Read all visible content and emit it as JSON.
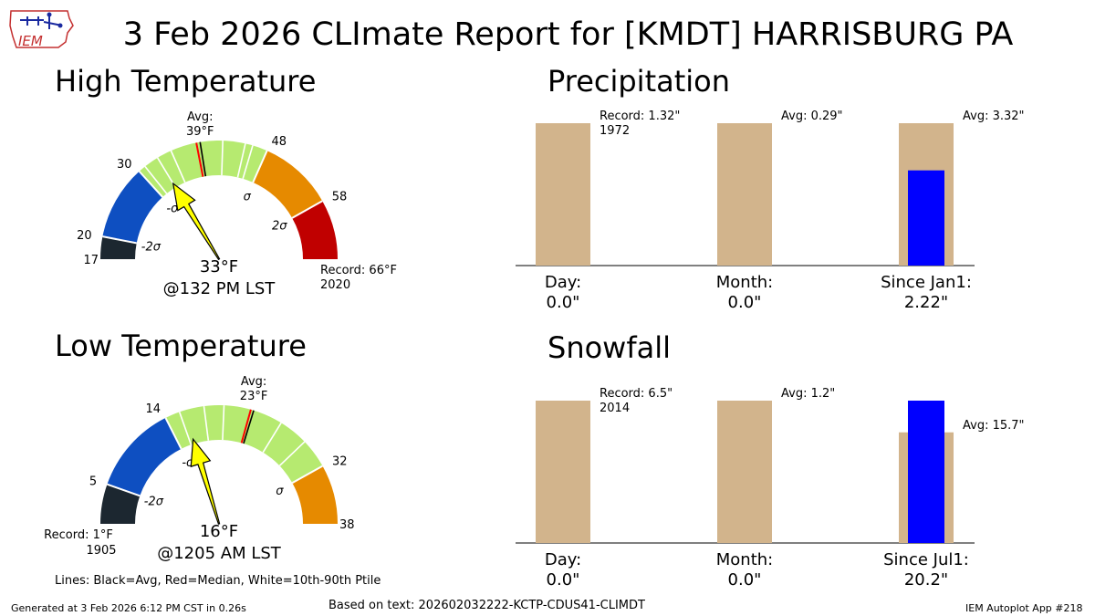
{
  "title": "3 Feb 2026 CLImate Report for [KMDT] HARRISBURG PA",
  "logo_text": "IEM",
  "panels": {
    "high_title": "High Temperature",
    "low_title": "Low Temperature",
    "precip_title": "Precipitation",
    "snow_title": "Snowfall"
  },
  "legend_lines": "Lines: Black=Avg, Red=Median, White=10th-90th Ptile",
  "footer": {
    "generated": "Generated at 3 Feb 2026 6:12 PM CST in 0.26s",
    "based_on": "Based on text: 202602032222-KCTP-CDUS41-CLIMDT",
    "app": "IEM Autoplot App #218"
  },
  "colors": {
    "gauge_black": "#1c2730",
    "gauge_blue": "#0e4fc1",
    "gauge_green": "#b6ea70",
    "gauge_orange": "#e68a00",
    "gauge_red": "#c00000",
    "bar_avg": "#d2b48c",
    "bar_obs": "#0000ff",
    "pointer": "#ffff00",
    "median_line": "#ff0000",
    "avg_line": "#000000",
    "ptile_line": "#ffffff"
  },
  "chart_data": [
    {
      "type": "gauge",
      "name": "high",
      "min": 17,
      "max": 66,
      "bands": [
        {
          "from": 17,
          "to": 20,
          "color": "gauge_black"
        },
        {
          "from": 20,
          "to": 30,
          "color": "gauge_blue"
        },
        {
          "from": 30,
          "to": 48,
          "color": "gauge_green"
        },
        {
          "from": 48,
          "to": 58,
          "color": "gauge_orange"
        },
        {
          "from": 58,
          "to": 66,
          "color": "gauge_red"
        }
      ],
      "tick_labels": [
        {
          "value": 17,
          "label": "17"
        },
        {
          "value": 20,
          "label": "20"
        },
        {
          "value": 30,
          "label": "30"
        },
        {
          "value": 48,
          "label": "48"
        },
        {
          "value": 58,
          "label": "58"
        }
      ],
      "sigma_labels": [
        {
          "value": 20,
          "label": "-2σ"
        },
        {
          "value": 30,
          "label": "-σ"
        },
        {
          "value": 48,
          "label": "σ"
        },
        {
          "value": 58,
          "label": "2σ"
        }
      ],
      "avg": 39,
      "median": 38.5,
      "ptile_lines": [
        31,
        33,
        35,
        42,
        45,
        46
      ],
      "avg_label": "Avg:\n39°F",
      "observed": 33,
      "observed_label": "33°F",
      "observed_time": "@132 PM LST",
      "record_label": "Record: 66°F\n2020",
      "record_side": "right"
    },
    {
      "type": "gauge",
      "name": "low",
      "min": 1,
      "max": 38,
      "bands": [
        {
          "from": 1,
          "to": 5,
          "color": "gauge_black"
        },
        {
          "from": 5,
          "to": 14,
          "color": "gauge_blue"
        },
        {
          "from": 14,
          "to": 32,
          "color": "gauge_green"
        },
        {
          "from": 32,
          "to": 38,
          "color": "gauge_orange"
        }
      ],
      "tick_labels": [
        {
          "value": 5,
          "label": "5"
        },
        {
          "value": 14,
          "label": "14"
        },
        {
          "value": 32,
          "label": "32"
        },
        {
          "value": 38,
          "label": "38"
        }
      ],
      "sigma_labels": [
        {
          "value": 5,
          "label": "-2σ"
        },
        {
          "value": 14,
          "label": "-σ"
        },
        {
          "value": 32,
          "label": "σ"
        },
        {
          "value": 35,
          "label": ""
        }
      ],
      "avg": 23,
      "median": 22.7,
      "ptile_lines": [
        15.5,
        18,
        20,
        26,
        29
      ],
      "avg_label": "Avg:\n23°F",
      "observed": 16,
      "observed_label": "16°F",
      "observed_time": "@1205 AM LST",
      "record_label": "Record: 1°F\n1905",
      "record_side": "left"
    },
    {
      "type": "bar",
      "name": "precip",
      "categories": [
        "Day:\n0.0\"",
        "Month:\n0.0\"",
        "Since Jan1:\n2.22\""
      ],
      "avg_values": [
        1.32,
        0.29,
        3.32
      ],
      "obs_values": [
        0.0,
        0.0,
        2.22
      ],
      "bar_annotations": [
        "Record: 1.32\"\n1972",
        "Avg: 0.29\"",
        "Avg: 3.32\""
      ]
    },
    {
      "type": "bar",
      "name": "snow",
      "categories": [
        "Day:\n0.0\"",
        "Month:\n0.0\"",
        "Since Jul1:\n20.2\""
      ],
      "avg_values": [
        6.5,
        1.2,
        15.7
      ],
      "obs_values": [
        0.0,
        0.0,
        20.2
      ],
      "bar_annotations": [
        "Record: 6.5\"\n2014",
        "Avg: 1.2\"",
        "Avg: 15.7\""
      ]
    }
  ]
}
